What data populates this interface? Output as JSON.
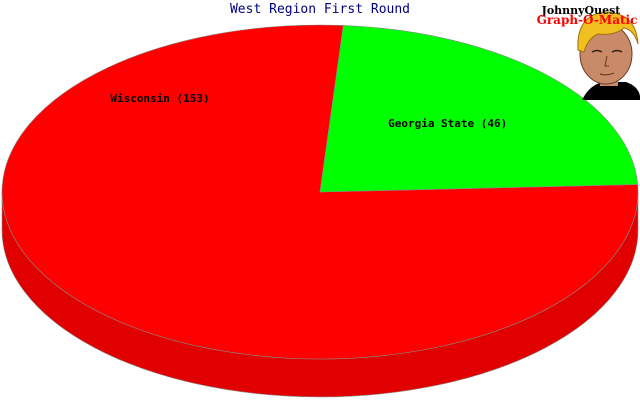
{
  "chart_data": {
    "type": "pie",
    "title": "West Region First Round",
    "style": "3d",
    "slices": [
      {
        "label": "Wisconsin",
        "value": 153,
        "color": "#ff0000"
      },
      {
        "label": "Georgia State",
        "value": 46,
        "color": "#00ff00"
      }
    ],
    "label_format": "{label} ({value})"
  },
  "logo": {
    "line1": "JohnnyQuest",
    "line2": "Graph-O-Matic"
  }
}
